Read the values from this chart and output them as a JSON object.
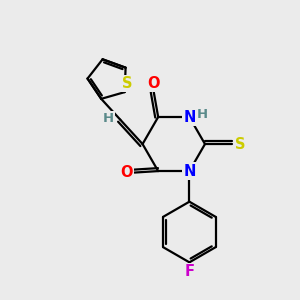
{
  "bg_color": "#ebebeb",
  "bond_color": "#000000",
  "S_color": "#cccc00",
  "O_color": "#ff0000",
  "N_color": "#0000ff",
  "F_color": "#cc00cc",
  "H_color": "#5a8a8a",
  "line_width": 1.6,
  "font_size": 10.5,
  "figsize": [
    3.0,
    3.0
  ],
  "dpi": 100,
  "xlim": [
    0,
    10
  ],
  "ylim": [
    0,
    10
  ]
}
